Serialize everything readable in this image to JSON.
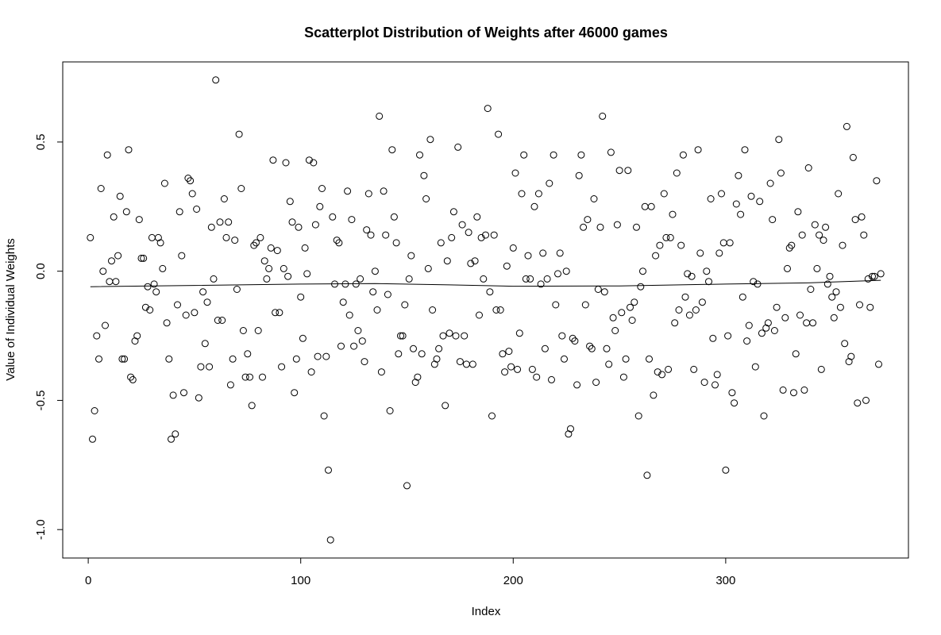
{
  "chart_data": {
    "type": "scatter",
    "title": "Scatterplot Distribution of Weights after 46000 games",
    "xlabel": "Index",
    "ylabel": "Value of Individual Weights",
    "xlim": [
      -12,
      386
    ],
    "ylim": [
      -1.11,
      0.81
    ],
    "x_ticks": [
      0,
      100,
      200,
      300
    ],
    "y_ticks": [
      -1.0,
      -0.5,
      0.0,
      0.5
    ],
    "y_tick_labels": [
      "-1.0",
      "-0.5",
      "0.0",
      "0.5"
    ],
    "grid": false,
    "legend": "none",
    "points": [
      [
        1,
        0.13
      ],
      [
        2,
        -0.65
      ],
      [
        3,
        -0.54
      ],
      [
        4,
        -0.25
      ],
      [
        5,
        -0.34
      ],
      [
        6,
        0.32
      ],
      [
        7,
        0.0
      ],
      [
        8,
        -0.21
      ],
      [
        9,
        0.45
      ],
      [
        10,
        -0.04
      ],
      [
        11,
        0.04
      ],
      [
        12,
        0.21
      ],
      [
        13,
        -0.04
      ],
      [
        14,
        0.06
      ],
      [
        15,
        0.29
      ],
      [
        16,
        -0.34
      ],
      [
        17,
        -0.34
      ],
      [
        18,
        0.23
      ],
      [
        19,
        0.47
      ],
      [
        20,
        -0.41
      ],
      [
        21,
        -0.42
      ],
      [
        22,
        -0.27
      ],
      [
        23,
        -0.25
      ],
      [
        24,
        0.2
      ],
      [
        25,
        0.05
      ],
      [
        26,
        0.05
      ],
      [
        27,
        -0.14
      ],
      [
        28,
        -0.06
      ],
      [
        29,
        -0.15
      ],
      [
        30,
        0.13
      ],
      [
        31,
        -0.05
      ],
      [
        32,
        -0.08
      ],
      [
        33,
        0.13
      ],
      [
        34,
        0.11
      ],
      [
        35,
        0.01
      ],
      [
        36,
        0.34
      ],
      [
        37,
        -0.2
      ],
      [
        38,
        -0.34
      ],
      [
        39,
        -0.65
      ],
      [
        40,
        -0.48
      ],
      [
        41,
        -0.63
      ],
      [
        42,
        -0.13
      ],
      [
        43,
        0.23
      ],
      [
        44,
        0.06
      ],
      [
        45,
        -0.47
      ],
      [
        46,
        -0.17
      ],
      [
        47,
        0.36
      ],
      [
        48,
        0.35
      ],
      [
        49,
        0.3
      ],
      [
        50,
        -0.16
      ],
      [
        51,
        0.24
      ],
      [
        52,
        -0.49
      ],
      [
        53,
        -0.37
      ],
      [
        54,
        -0.08
      ],
      [
        55,
        -0.28
      ],
      [
        56,
        -0.12
      ],
      [
        57,
        -0.37
      ],
      [
        58,
        0.17
      ],
      [
        59,
        -0.03
      ],
      [
        60,
        0.74
      ],
      [
        61,
        -0.19
      ],
      [
        62,
        0.19
      ],
      [
        63,
        -0.19
      ],
      [
        64,
        0.28
      ],
      [
        65,
        0.13
      ],
      [
        66,
        0.19
      ],
      [
        67,
        -0.44
      ],
      [
        68,
        -0.34
      ],
      [
        69,
        0.12
      ],
      [
        70,
        -0.07
      ],
      [
        71,
        0.53
      ],
      [
        72,
        0.32
      ],
      [
        73,
        -0.23
      ],
      [
        74,
        -0.41
      ],
      [
        75,
        -0.32
      ],
      [
        76,
        -0.41
      ],
      [
        77,
        -0.52
      ],
      [
        78,
        0.1
      ],
      [
        79,
        0.11
      ],
      [
        80,
        -0.23
      ],
      [
        81,
        0.13
      ],
      [
        82,
        -0.41
      ],
      [
        83,
        0.04
      ],
      [
        84,
        -0.03
      ],
      [
        85,
        0.01
      ],
      [
        86,
        0.09
      ],
      [
        87,
        0.43
      ],
      [
        88,
        -0.16
      ],
      [
        89,
        0.08
      ],
      [
        90,
        -0.16
      ],
      [
        91,
        -0.37
      ],
      [
        92,
        0.01
      ],
      [
        93,
        0.42
      ],
      [
        94,
        -0.02
      ],
      [
        95,
        0.27
      ],
      [
        96,
        0.19
      ],
      [
        97,
        -0.47
      ],
      [
        98,
        -0.34
      ],
      [
        99,
        0.17
      ],
      [
        100,
        -0.1
      ],
      [
        101,
        -0.26
      ],
      [
        102,
        0.09
      ],
      [
        103,
        -0.01
      ],
      [
        104,
        0.43
      ],
      [
        105,
        -0.39
      ],
      [
        106,
        0.42
      ],
      [
        107,
        0.18
      ],
      [
        108,
        -0.33
      ],
      [
        109,
        0.25
      ],
      [
        110,
        0.32
      ],
      [
        111,
        -0.56
      ],
      [
        112,
        -0.33
      ],
      [
        113,
        -0.77
      ],
      [
        114,
        -1.04
      ],
      [
        115,
        0.21
      ],
      [
        116,
        -0.05
      ],
      [
        117,
        0.12
      ],
      [
        118,
        0.11
      ],
      [
        119,
        -0.29
      ],
      [
        120,
        -0.12
      ],
      [
        121,
        -0.05
      ],
      [
        122,
        0.31
      ],
      [
        123,
        -0.17
      ],
      [
        124,
        0.2
      ],
      [
        125,
        -0.29
      ],
      [
        126,
        -0.05
      ],
      [
        127,
        -0.23
      ],
      [
        128,
        -0.03
      ],
      [
        129,
        -0.27
      ],
      [
        130,
        -0.35
      ],
      [
        131,
        0.16
      ],
      [
        132,
        0.3
      ],
      [
        133,
        0.14
      ],
      [
        134,
        -0.08
      ],
      [
        135,
        0.0
      ],
      [
        136,
        -0.15
      ],
      [
        137,
        0.6
      ],
      [
        138,
        -0.39
      ],
      [
        139,
        0.31
      ],
      [
        140,
        0.14
      ],
      [
        141,
        -0.09
      ],
      [
        142,
        -0.54
      ],
      [
        143,
        0.47
      ],
      [
        144,
        0.21
      ],
      [
        145,
        0.11
      ],
      [
        146,
        -0.32
      ],
      [
        147,
        -0.25
      ],
      [
        148,
        -0.25
      ],
      [
        149,
        -0.13
      ],
      [
        150,
        -0.83
      ],
      [
        151,
        -0.03
      ],
      [
        152,
        0.06
      ],
      [
        153,
        -0.3
      ],
      [
        154,
        -0.43
      ],
      [
        155,
        -0.41
      ],
      [
        156,
        0.45
      ],
      [
        157,
        -0.32
      ],
      [
        158,
        0.37
      ],
      [
        159,
        0.28
      ],
      [
        160,
        0.01
      ],
      [
        161,
        0.51
      ],
      [
        162,
        -0.15
      ],
      [
        163,
        -0.36
      ],
      [
        164,
        -0.34
      ],
      [
        165,
        -0.3
      ],
      [
        166,
        0.11
      ],
      [
        167,
        -0.25
      ],
      [
        168,
        -0.52
      ],
      [
        169,
        0.04
      ],
      [
        170,
        -0.24
      ],
      [
        171,
        0.13
      ],
      [
        172,
        0.23
      ],
      [
        173,
        -0.25
      ],
      [
        174,
        0.48
      ],
      [
        175,
        -0.35
      ],
      [
        176,
        0.18
      ],
      [
        177,
        -0.25
      ],
      [
        178,
        -0.36
      ],
      [
        179,
        0.15
      ],
      [
        180,
        0.03
      ],
      [
        181,
        -0.36
      ],
      [
        182,
        0.04
      ],
      [
        183,
        0.21
      ],
      [
        184,
        -0.17
      ],
      [
        185,
        0.13
      ],
      [
        186,
        -0.03
      ],
      [
        187,
        0.14
      ],
      [
        188,
        0.63
      ],
      [
        189,
        -0.08
      ],
      [
        190,
        -0.56
      ],
      [
        191,
        0.14
      ],
      [
        192,
        -0.15
      ],
      [
        193,
        0.53
      ],
      [
        194,
        -0.15
      ],
      [
        195,
        -0.32
      ],
      [
        196,
        -0.39
      ],
      [
        197,
        0.02
      ],
      [
        198,
        -0.31
      ],
      [
        199,
        -0.37
      ],
      [
        200,
        0.09
      ],
      [
        201,
        0.38
      ],
      [
        202,
        -0.38
      ],
      [
        203,
        -0.24
      ],
      [
        204,
        0.3
      ],
      [
        205,
        0.45
      ],
      [
        206,
        -0.03
      ],
      [
        207,
        0.06
      ],
      [
        208,
        -0.03
      ],
      [
        209,
        -0.38
      ],
      [
        210,
        0.25
      ],
      [
        211,
        -0.41
      ],
      [
        212,
        0.3
      ],
      [
        213,
        -0.05
      ],
      [
        214,
        0.07
      ],
      [
        215,
        -0.3
      ],
      [
        216,
        -0.03
      ],
      [
        217,
        0.34
      ],
      [
        218,
        -0.42
      ],
      [
        219,
        0.45
      ],
      [
        220,
        -0.13
      ],
      [
        221,
        -0.01
      ],
      [
        222,
        0.07
      ],
      [
        223,
        -0.25
      ],
      [
        224,
        -0.34
      ],
      [
        225,
        0.0
      ],
      [
        226,
        -0.63
      ],
      [
        227,
        -0.61
      ],
      [
        228,
        -0.26
      ],
      [
        229,
        -0.27
      ],
      [
        230,
        -0.44
      ],
      [
        231,
        0.37
      ],
      [
        232,
        0.45
      ],
      [
        233,
        0.17
      ],
      [
        234,
        -0.13
      ],
      [
        235,
        0.2
      ],
      [
        236,
        -0.29
      ],
      [
        237,
        -0.3
      ],
      [
        238,
        0.28
      ],
      [
        239,
        -0.43
      ],
      [
        240,
        -0.07
      ],
      [
        241,
        0.17
      ],
      [
        242,
        0.6
      ],
      [
        243,
        -0.08
      ],
      [
        244,
        -0.3
      ],
      [
        245,
        -0.36
      ],
      [
        246,
        0.46
      ],
      [
        247,
        -0.18
      ],
      [
        248,
        -0.23
      ],
      [
        249,
        0.18
      ],
      [
        250,
        0.39
      ],
      [
        251,
        -0.16
      ],
      [
        252,
        -0.41
      ],
      [
        253,
        -0.34
      ],
      [
        254,
        0.39
      ],
      [
        255,
        -0.14
      ],
      [
        256,
        -0.19
      ],
      [
        257,
        -0.12
      ],
      [
        258,
        0.17
      ],
      [
        259,
        -0.56
      ],
      [
        260,
        -0.06
      ],
      [
        261,
        0.0
      ],
      [
        262,
        0.25
      ],
      [
        263,
        -0.79
      ],
      [
        264,
        -0.34
      ],
      [
        265,
        0.25
      ],
      [
        266,
        -0.48
      ],
      [
        267,
        0.06
      ],
      [
        268,
        -0.39
      ],
      [
        269,
        0.1
      ],
      [
        270,
        -0.4
      ],
      [
        271,
        0.3
      ],
      [
        272,
        0.13
      ],
      [
        273,
        -0.38
      ],
      [
        274,
        0.13
      ],
      [
        275,
        0.22
      ],
      [
        276,
        -0.2
      ],
      [
        277,
        0.38
      ],
      [
        278,
        -0.15
      ],
      [
        279,
        0.1
      ],
      [
        280,
        0.45
      ],
      [
        281,
        -0.1
      ],
      [
        282,
        -0.01
      ],
      [
        283,
        -0.17
      ],
      [
        284,
        -0.02
      ],
      [
        285,
        -0.38
      ],
      [
        286,
        -0.15
      ],
      [
        287,
        0.47
      ],
      [
        288,
        0.07
      ],
      [
        289,
        -0.12
      ],
      [
        290,
        -0.43
      ],
      [
        291,
        0.0
      ],
      [
        292,
        -0.04
      ],
      [
        293,
        0.28
      ],
      [
        294,
        -0.26
      ],
      [
        295,
        -0.44
      ],
      [
        296,
        -0.4
      ],
      [
        297,
        0.07
      ],
      [
        298,
        0.3
      ],
      [
        299,
        0.11
      ],
      [
        300,
        -0.77
      ],
      [
        301,
        -0.25
      ],
      [
        302,
        0.11
      ],
      [
        303,
        -0.47
      ],
      [
        304,
        -0.51
      ],
      [
        305,
        0.26
      ],
      [
        306,
        0.37
      ],
      [
        307,
        0.22
      ],
      [
        308,
        -0.1
      ],
      [
        309,
        0.47
      ],
      [
        310,
        -0.27
      ],
      [
        311,
        -0.21
      ],
      [
        312,
        0.29
      ],
      [
        313,
        -0.04
      ],
      [
        314,
        -0.37
      ],
      [
        315,
        -0.05
      ],
      [
        316,
        0.27
      ],
      [
        317,
        -0.24
      ],
      [
        318,
        -0.56
      ],
      [
        319,
        -0.22
      ],
      [
        320,
        -0.2
      ],
      [
        321,
        0.34
      ],
      [
        322,
        0.2
      ],
      [
        323,
        -0.23
      ],
      [
        324,
        -0.14
      ],
      [
        325,
        0.51
      ],
      [
        326,
        0.38
      ],
      [
        327,
        -0.46
      ],
      [
        328,
        -0.18
      ],
      [
        329,
        0.01
      ],
      [
        330,
        0.09
      ],
      [
        331,
        0.1
      ],
      [
        332,
        -0.47
      ],
      [
        333,
        -0.32
      ],
      [
        334,
        0.23
      ],
      [
        335,
        -0.17
      ],
      [
        336,
        0.14
      ],
      [
        337,
        -0.46
      ],
      [
        338,
        -0.2
      ],
      [
        339,
        0.4
      ],
      [
        340,
        -0.07
      ],
      [
        341,
        -0.2
      ],
      [
        342,
        0.18
      ],
      [
        343,
        0.01
      ],
      [
        344,
        0.14
      ],
      [
        345,
        -0.38
      ],
      [
        346,
        0.12
      ],
      [
        347,
        0.17
      ],
      [
        348,
        -0.05
      ],
      [
        349,
        -0.02
      ],
      [
        350,
        -0.1
      ],
      [
        351,
        -0.18
      ],
      [
        352,
        -0.08
      ],
      [
        353,
        0.3
      ],
      [
        354,
        -0.14
      ],
      [
        355,
        0.1
      ],
      [
        356,
        -0.28
      ],
      [
        357,
        0.56
      ],
      [
        358,
        -0.35
      ],
      [
        359,
        -0.33
      ],
      [
        360,
        0.44
      ],
      [
        361,
        0.2
      ],
      [
        362,
        -0.51
      ],
      [
        363,
        -0.13
      ],
      [
        364,
        0.21
      ],
      [
        365,
        0.14
      ],
      [
        366,
        -0.5
      ],
      [
        367,
        -0.03
      ],
      [
        368,
        -0.14
      ],
      [
        369,
        -0.02
      ],
      [
        370,
        -0.02
      ],
      [
        371,
        0.35
      ],
      [
        372,
        -0.36
      ],
      [
        373,
        -0.01
      ]
    ],
    "trend_line": [
      [
        1,
        -0.06
      ],
      [
        50,
        -0.055
      ],
      [
        100,
        -0.05
      ],
      [
        135,
        -0.048
      ],
      [
        170,
        -0.053
      ],
      [
        200,
        -0.058
      ],
      [
        250,
        -0.057
      ],
      [
        300,
        -0.05
      ],
      [
        340,
        -0.045
      ],
      [
        373,
        -0.035
      ]
    ]
  }
}
